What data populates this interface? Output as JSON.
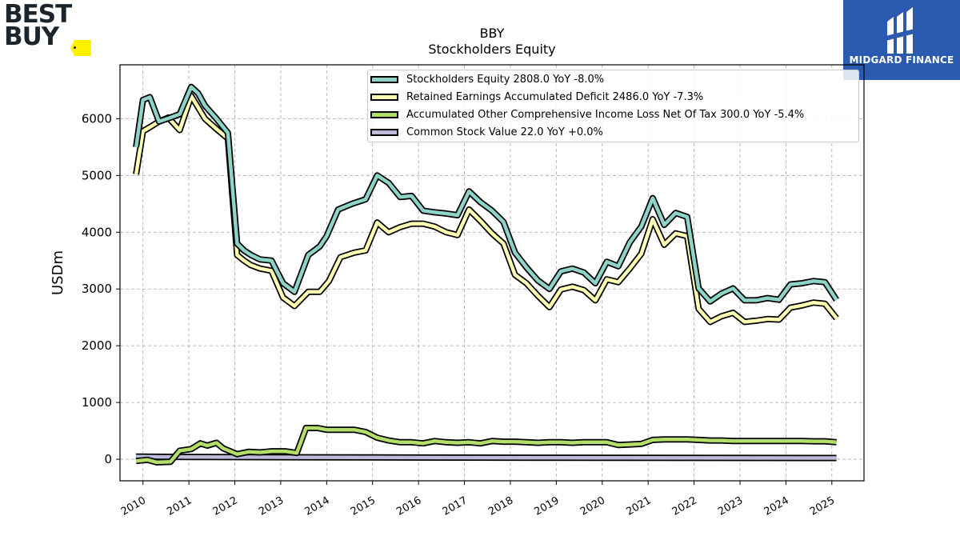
{
  "brand_left": {
    "line1": "BEST",
    "line2": "BUY"
  },
  "brand_right": {
    "name": "MIDGARD FINANCE"
  },
  "chart_data": {
    "type": "line",
    "title": "BBY",
    "subtitle": "Stockholders  Equity",
    "xlabel": "",
    "ylabel": "USDm",
    "xlim": [
      2009.5,
      2025.7
    ],
    "ylim": [
      -380,
      6950
    ],
    "xticks": [
      2010,
      2011,
      2012,
      2013,
      2014,
      2015,
      2016,
      2017,
      2018,
      2019,
      2020,
      2021,
      2022,
      2023,
      2024,
      2025
    ],
    "yticks": [
      0,
      1000,
      2000,
      3000,
      4000,
      5000,
      6000
    ],
    "grid": true,
    "legend_position": "top-right",
    "series": [
      {
        "name": "Stockholders Equity  2808.0 YoY -8.0%",
        "color": "#8dd3c7",
        "points": [
          [
            2009.85,
            5500
          ],
          [
            2010.0,
            6330
          ],
          [
            2010.15,
            6380
          ],
          [
            2010.35,
            5950
          ],
          [
            2010.6,
            6020
          ],
          [
            2010.8,
            6080
          ],
          [
            2011.05,
            6560
          ],
          [
            2011.2,
            6450
          ],
          [
            2011.35,
            6230
          ],
          [
            2011.6,
            6000
          ],
          [
            2011.85,
            5750
          ],
          [
            2012.05,
            3800
          ],
          [
            2012.2,
            3680
          ],
          [
            2012.35,
            3600
          ],
          [
            2012.55,
            3520
          ],
          [
            2012.8,
            3500
          ],
          [
            2013.05,
            3100
          ],
          [
            2013.3,
            2950
          ],
          [
            2013.6,
            3600
          ],
          [
            2013.85,
            3750
          ],
          [
            2014.0,
            3930
          ],
          [
            2014.25,
            4400
          ],
          [
            2014.55,
            4500
          ],
          [
            2014.85,
            4580
          ],
          [
            2015.1,
            5000
          ],
          [
            2015.35,
            4870
          ],
          [
            2015.6,
            4620
          ],
          [
            2015.85,
            4640
          ],
          [
            2016.1,
            4380
          ],
          [
            2016.35,
            4350
          ],
          [
            2016.6,
            4330
          ],
          [
            2016.85,
            4300
          ],
          [
            2017.1,
            4720
          ],
          [
            2017.35,
            4530
          ],
          [
            2017.6,
            4380
          ],
          [
            2017.85,
            4180
          ],
          [
            2018.1,
            3640
          ],
          [
            2018.35,
            3380
          ],
          [
            2018.6,
            3150
          ],
          [
            2018.85,
            3000
          ],
          [
            2019.1,
            3310
          ],
          [
            2019.35,
            3360
          ],
          [
            2019.6,
            3290
          ],
          [
            2019.85,
            3100
          ],
          [
            2020.1,
            3480
          ],
          [
            2020.35,
            3400
          ],
          [
            2020.6,
            3820
          ],
          [
            2020.85,
            4100
          ],
          [
            2021.1,
            4600
          ],
          [
            2021.35,
            4130
          ],
          [
            2021.6,
            4340
          ],
          [
            2021.85,
            4270
          ],
          [
            2022.1,
            3010
          ],
          [
            2022.35,
            2780
          ],
          [
            2022.6,
            2920
          ],
          [
            2022.85,
            3010
          ],
          [
            2023.1,
            2800
          ],
          [
            2023.35,
            2800
          ],
          [
            2023.6,
            2840
          ],
          [
            2023.85,
            2810
          ],
          [
            2024.1,
            3080
          ],
          [
            2024.35,
            3100
          ],
          [
            2024.6,
            3140
          ],
          [
            2024.85,
            3120
          ],
          [
            2025.1,
            2808
          ]
        ]
      },
      {
        "name": "Retained Earnings Accumulated Deficit  2486.0 YoY -7.3%",
        "color": "#ffffb3",
        "points": [
          [
            2009.85,
            5020
          ],
          [
            2010.0,
            5780
          ],
          [
            2010.15,
            5850
          ],
          [
            2010.35,
            5950
          ],
          [
            2010.55,
            6020
          ],
          [
            2010.8,
            5800
          ],
          [
            2011.05,
            6400
          ],
          [
            2011.2,
            6200
          ],
          [
            2011.35,
            6000
          ],
          [
            2011.6,
            5820
          ],
          [
            2011.85,
            5650
          ],
          [
            2012.05,
            3600
          ],
          [
            2012.2,
            3500
          ],
          [
            2012.35,
            3420
          ],
          [
            2012.55,
            3360
          ],
          [
            2012.8,
            3320
          ],
          [
            2013.05,
            2850
          ],
          [
            2013.3,
            2700
          ],
          [
            2013.6,
            2950
          ],
          [
            2013.85,
            2950
          ],
          [
            2014.05,
            3140
          ],
          [
            2014.3,
            3560
          ],
          [
            2014.6,
            3640
          ],
          [
            2014.85,
            3680
          ],
          [
            2015.1,
            4170
          ],
          [
            2015.35,
            4000
          ],
          [
            2015.6,
            4090
          ],
          [
            2015.85,
            4150
          ],
          [
            2016.1,
            4150
          ],
          [
            2016.35,
            4100
          ],
          [
            2016.6,
            4000
          ],
          [
            2016.85,
            3950
          ],
          [
            2017.1,
            4400
          ],
          [
            2017.35,
            4200
          ],
          [
            2017.6,
            3980
          ],
          [
            2017.85,
            3800
          ],
          [
            2018.1,
            3250
          ],
          [
            2018.35,
            3100
          ],
          [
            2018.6,
            2880
          ],
          [
            2018.85,
            2680
          ],
          [
            2019.1,
            2990
          ],
          [
            2019.35,
            3040
          ],
          [
            2019.6,
            2980
          ],
          [
            2019.85,
            2800
          ],
          [
            2020.1,
            3170
          ],
          [
            2020.35,
            3120
          ],
          [
            2020.6,
            3360
          ],
          [
            2020.85,
            3620
          ],
          [
            2021.1,
            4230
          ],
          [
            2021.35,
            3780
          ],
          [
            2021.6,
            3980
          ],
          [
            2021.85,
            3930
          ],
          [
            2022.1,
            2650
          ],
          [
            2022.35,
            2420
          ],
          [
            2022.6,
            2520
          ],
          [
            2022.85,
            2580
          ],
          [
            2023.1,
            2420
          ],
          [
            2023.35,
            2440
          ],
          [
            2023.6,
            2470
          ],
          [
            2023.85,
            2460
          ],
          [
            2024.1,
            2670
          ],
          [
            2024.35,
            2710
          ],
          [
            2024.6,
            2760
          ],
          [
            2024.85,
            2740
          ],
          [
            2025.1,
            2486
          ]
        ]
      },
      {
        "name": "Accumulated Other Comprehensive Income Loss Net Of Tax  300.0 YoY -5.4%",
        "color": "#b3de69",
        "points": [
          [
            2009.85,
            -30
          ],
          [
            2010.1,
            -10
          ],
          [
            2010.3,
            -55
          ],
          [
            2010.6,
            -45
          ],
          [
            2010.8,
            150
          ],
          [
            2011.05,
            180
          ],
          [
            2011.25,
            280
          ],
          [
            2011.4,
            240
          ],
          [
            2011.6,
            290
          ],
          [
            2011.75,
            190
          ],
          [
            2011.9,
            140
          ],
          [
            2012.05,
            90
          ],
          [
            2012.3,
            130
          ],
          [
            2012.55,
            120
          ],
          [
            2012.8,
            140
          ],
          [
            2013.1,
            140
          ],
          [
            2013.35,
            110
          ],
          [
            2013.55,
            550
          ],
          [
            2013.8,
            550
          ],
          [
            2014.0,
            520
          ],
          [
            2014.3,
            520
          ],
          [
            2014.6,
            520
          ],
          [
            2014.85,
            480
          ],
          [
            2015.1,
            380
          ],
          [
            2015.35,
            330
          ],
          [
            2015.6,
            300
          ],
          [
            2015.85,
            300
          ],
          [
            2016.1,
            280
          ],
          [
            2016.35,
            320
          ],
          [
            2016.6,
            300
          ],
          [
            2016.85,
            290
          ],
          [
            2017.1,
            300
          ],
          [
            2017.35,
            280
          ],
          [
            2017.6,
            320
          ],
          [
            2017.85,
            310
          ],
          [
            2018.1,
            310
          ],
          [
            2018.35,
            300
          ],
          [
            2018.6,
            290
          ],
          [
            2018.85,
            300
          ],
          [
            2019.1,
            300
          ],
          [
            2019.35,
            290
          ],
          [
            2019.6,
            300
          ],
          [
            2019.85,
            300
          ],
          [
            2020.1,
            300
          ],
          [
            2020.35,
            250
          ],
          [
            2020.6,
            260
          ],
          [
            2020.85,
            270
          ],
          [
            2021.1,
            340
          ],
          [
            2021.35,
            350
          ],
          [
            2021.6,
            350
          ],
          [
            2021.85,
            350
          ],
          [
            2022.1,
            340
          ],
          [
            2022.35,
            330
          ],
          [
            2022.6,
            330
          ],
          [
            2022.85,
            320
          ],
          [
            2023.1,
            320
          ],
          [
            2023.35,
            320
          ],
          [
            2023.6,
            320
          ],
          [
            2023.85,
            320
          ],
          [
            2024.1,
            320
          ],
          [
            2024.35,
            320
          ],
          [
            2024.6,
            317
          ],
          [
            2024.85,
            317
          ],
          [
            2025.1,
            300
          ]
        ]
      },
      {
        "name": "Common Stock Value  22.0 YoY +0.0%",
        "color": "#bebada",
        "points": [
          [
            2009.85,
            45
          ],
          [
            2011.0,
            40
          ],
          [
            2015.0,
            32
          ],
          [
            2020.0,
            25
          ],
          [
            2025.1,
            22
          ]
        ]
      }
    ]
  }
}
